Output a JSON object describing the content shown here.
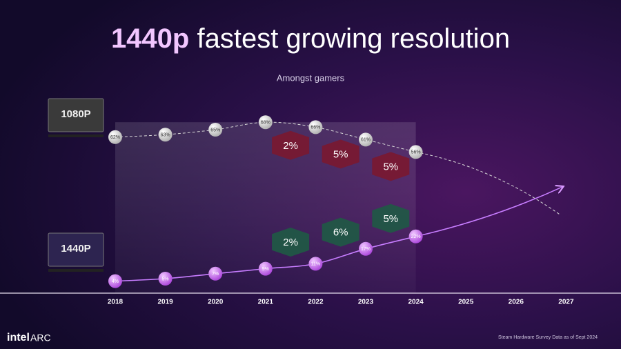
{
  "chart_data": {
    "type": "line",
    "title_emphasis": "1440p",
    "title_rest": "fastest growing resolution",
    "subtitle": "Amongst gamers",
    "source": "Steam Hardware Survey Data as of Sept 2024",
    "brand": "intel",
    "product": "ARC",
    "categories": [
      "2018",
      "2019",
      "2020",
      "2021",
      "2022",
      "2023",
      "2024",
      "2025",
      "2026",
      "2027"
    ],
    "ylim": [
      0,
      100
    ],
    "series": [
      {
        "name": "1080P",
        "color": "#d9d9d9",
        "values": [
          62,
          63,
          65,
          68,
          66,
          61,
          56,
          null,
          null,
          null
        ],
        "value_labels": [
          "62%",
          "63%",
          "65%",
          "68%",
          "66%",
          "61%",
          "56%",
          null,
          null,
          null
        ],
        "deltas": [
          2,
          5,
          5
        ],
        "delta_labels": [
          "2%",
          "5%",
          "5%"
        ],
        "delta_color": "#7a1830"
      },
      {
        "name": "1440P",
        "color": "#c77dff",
        "values": [
          4,
          5,
          7,
          9,
          11,
          17,
          22,
          null,
          null,
          null
        ],
        "value_labels": [
          "4%",
          "5%",
          "7%",
          "9%",
          "11%",
          "17%",
          "22%",
          null,
          null,
          null
        ],
        "deltas": [
          2,
          6,
          5
        ],
        "delta_labels": [
          "2%",
          "6%",
          "5%"
        ],
        "delta_color": "#1f5a45"
      }
    ]
  }
}
